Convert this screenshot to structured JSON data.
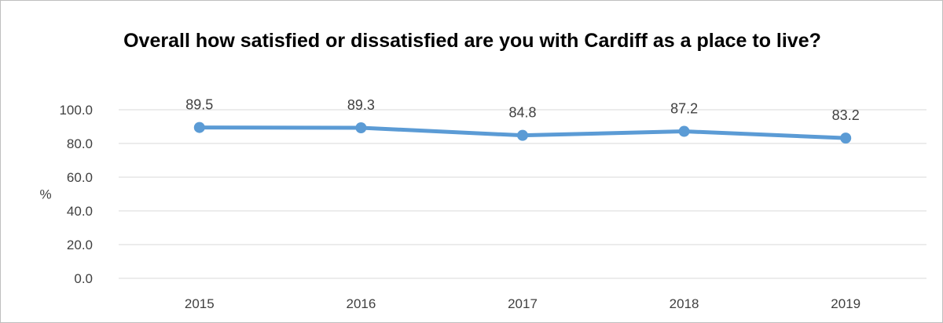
{
  "chart_data": {
    "type": "line",
    "title": "Overall how satisfied or dissatisfied are you with Cardiff as a place to live?",
    "xlabel": "",
    "ylabel": "%",
    "categories": [
      "2015",
      "2016",
      "2017",
      "2018",
      "2019"
    ],
    "series": [
      {
        "values": [
          89.5,
          89.3,
          84.8,
          87.2,
          83.2
        ],
        "color": "#5b9bd5"
      }
    ],
    "ylim": [
      0,
      100
    ],
    "yticks": [
      "0.0",
      "20.0",
      "40.0",
      "60.0",
      "80.0",
      "100.0"
    ],
    "data_labels": [
      "89.5",
      "89.3",
      "84.8",
      "87.2",
      "83.2"
    ],
    "grid": true,
    "gridline_color": "#d9d9d9",
    "legend": "none"
  }
}
